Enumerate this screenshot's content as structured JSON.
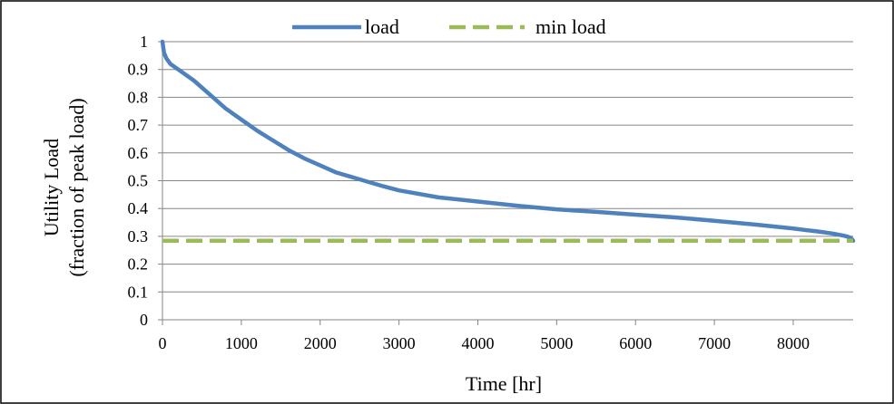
{
  "chart_data": {
    "type": "line",
    "xlabel": "Time [hr]",
    "ylabel_line1": "Utility Load",
    "ylabel_line2": "(fraction of peak load)",
    "xlim": [
      0,
      8760
    ],
    "ylim": [
      0,
      1
    ],
    "x_ticks": [
      0,
      1000,
      2000,
      3000,
      4000,
      5000,
      6000,
      7000,
      8000
    ],
    "y_ticks": [
      0,
      0.1,
      0.2,
      0.3,
      0.4,
      0.5,
      0.6,
      0.7,
      0.8,
      0.9,
      1
    ],
    "grid": "horizontal",
    "legend_position": "top",
    "series": [
      {
        "name": "load",
        "color": "#4F81BD",
        "style": "solid",
        "x": [
          0,
          20,
          50,
          100,
          200,
          400,
          600,
          800,
          1000,
          1200,
          1400,
          1600,
          1800,
          2000,
          2200,
          2500,
          2800,
          3000,
          3500,
          4000,
          4500,
          5000,
          5500,
          6000,
          6500,
          7000,
          7500,
          8000,
          8300,
          8500,
          8650,
          8700,
          8730,
          8750,
          8760
        ],
        "y": [
          1.0,
          0.96,
          0.94,
          0.92,
          0.9,
          0.86,
          0.81,
          0.76,
          0.72,
          0.68,
          0.645,
          0.61,
          0.58,
          0.555,
          0.53,
          0.505,
          0.48,
          0.465,
          0.44,
          0.425,
          0.41,
          0.397,
          0.388,
          0.378,
          0.368,
          0.356,
          0.343,
          0.328,
          0.318,
          0.31,
          0.302,
          0.298,
          0.294,
          0.288,
          0.284
        ]
      },
      {
        "name": "min load",
        "color": "#9BBB59",
        "style": "dashed",
        "x": [
          0,
          8760
        ],
        "y": [
          0.284,
          0.284
        ]
      }
    ]
  }
}
